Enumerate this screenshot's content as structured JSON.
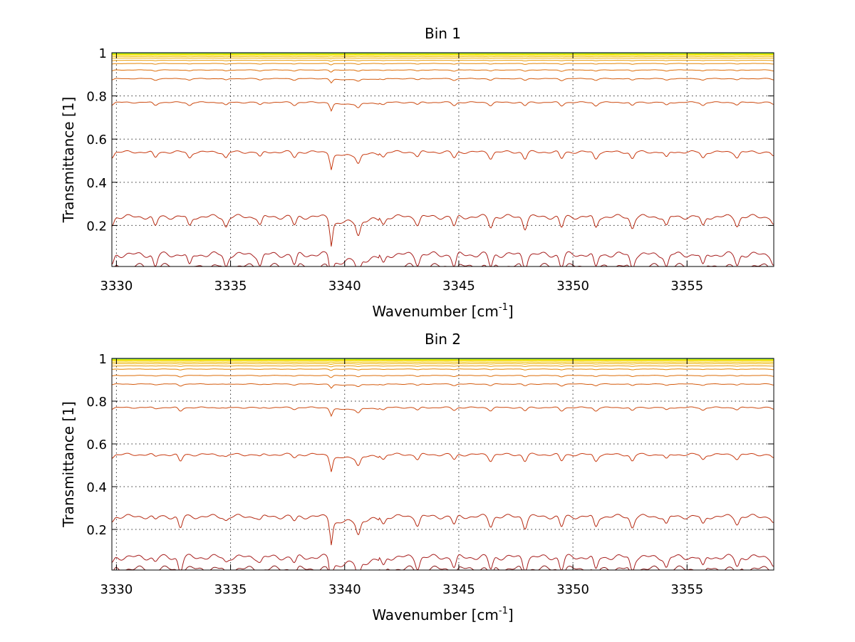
{
  "chart_data": [
    {
      "type": "line",
      "title": "Bin 1",
      "xlabel": "Wavenumber [cm",
      "xlabel_sup": "-1",
      "xlabel_end": "]",
      "ylabel": "Transmittance [1]",
      "xlim": [
        3329.8,
        3358.8
      ],
      "ylim": [
        0.01,
        1.0
      ],
      "xticks": [
        3330,
        3335,
        3340,
        3345,
        3350,
        3355
      ],
      "yticks": [
        0.2,
        0.4,
        0.6,
        0.8,
        1
      ],
      "grid": true,
      "legend": "none",
      "series_levels": [
        0.01,
        0.065,
        0.24,
        0.54,
        0.77,
        0.88,
        0.92,
        0.95,
        0.965,
        0.975,
        0.982,
        0.988,
        0.992,
        0.995,
        0.997,
        0.998,
        0.999
      ],
      "series_colors": [
        "#8b1a1a",
        "#a61d1d",
        "#b52a12",
        "#c83a10",
        "#cc4a10",
        "#d45a0c",
        "#dd6e08",
        "#e38406",
        "#e99a04",
        "#eeb002",
        "#f2c400",
        "#f4d600",
        "#f0e400",
        "#e2ef00",
        "#c8f400",
        "#8ef020",
        "#22a8d8"
      ],
      "x_profile": [
        3329.8,
        3331.7,
        3333.2,
        3334.8,
        3336.3,
        3337.8,
        3339.4,
        3340.6,
        3341.7,
        3343.2,
        3344.8,
        3346.4,
        3347.9,
        3349.5,
        3351.0,
        3352.6,
        3354.1,
        3355.7,
        3357.2,
        3358.8
      ],
      "absorption_depth": [
        0.35,
        0.4,
        0.4,
        0.4,
        0.35,
        0.35,
        0.85,
        0.55,
        0.3,
        0.3,
        0.4,
        0.4,
        0.45,
        0.45,
        0.45,
        0.45,
        0.4,
        0.4,
        0.35,
        0.3
      ]
    },
    {
      "type": "line",
      "title": "Bin 2",
      "xlabel": "Wavenumber [cm",
      "xlabel_sup": "-1",
      "xlabel_end": "]",
      "ylabel": "Transmittance [1]",
      "xlim": [
        3329.8,
        3358.8
      ],
      "ylim": [
        0.01,
        1.0
      ],
      "xticks": [
        3330,
        3335,
        3340,
        3345,
        3350,
        3355
      ],
      "yticks": [
        0.2,
        0.4,
        0.6,
        0.8,
        1
      ],
      "grid": true,
      "legend": "none",
      "series_levels": [
        0.015,
        0.07,
        0.26,
        0.55,
        0.77,
        0.88,
        0.92,
        0.95,
        0.965,
        0.975,
        0.982,
        0.988,
        0.992,
        0.995,
        0.997,
        0.998,
        0.999
      ],
      "series_colors": [
        "#8b1a1a",
        "#a61d1d",
        "#b52a12",
        "#c83a10",
        "#cc4a10",
        "#d45a0c",
        "#dd6e08",
        "#e38406",
        "#e99a04",
        "#eeb002",
        "#f2c400",
        "#f4d600",
        "#f0e400",
        "#e2ef00",
        "#c8f400",
        "#8ef020",
        "#22a8d8"
      ],
      "x_profile": [
        3329.8,
        3331.7,
        3332.8,
        3334.8,
        3336.3,
        3337.8,
        3339.4,
        3340.6,
        3341.7,
        3343.2,
        3344.8,
        3346.4,
        3347.9,
        3349.5,
        3351.0,
        3352.6,
        3354.1,
        3355.7,
        3357.2,
        3358.8
      ],
      "absorption_depth": [
        0.2,
        0.15,
        0.5,
        0.15,
        0.15,
        0.2,
        0.85,
        0.55,
        0.3,
        0.35,
        0.35,
        0.4,
        0.45,
        0.45,
        0.45,
        0.45,
        0.35,
        0.35,
        0.3,
        0.25
      ]
    }
  ]
}
